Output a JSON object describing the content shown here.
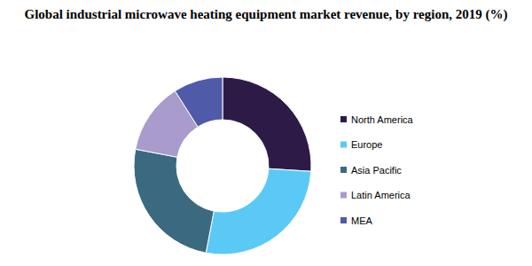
{
  "chart_data": {
    "type": "pie",
    "title": "Global industrial microwave heating equipment market revenue, by region, 2019 (%)",
    "categories": [
      "North America",
      "Europe",
      "Asia Pacific",
      "Latin America",
      "MEA"
    ],
    "values": [
      26,
      27,
      25,
      13,
      9
    ],
    "colors": [
      "#2e1a47",
      "#5bc9f6",
      "#3b6a80",
      "#a99bcb",
      "#4f5aa8"
    ]
  }
}
